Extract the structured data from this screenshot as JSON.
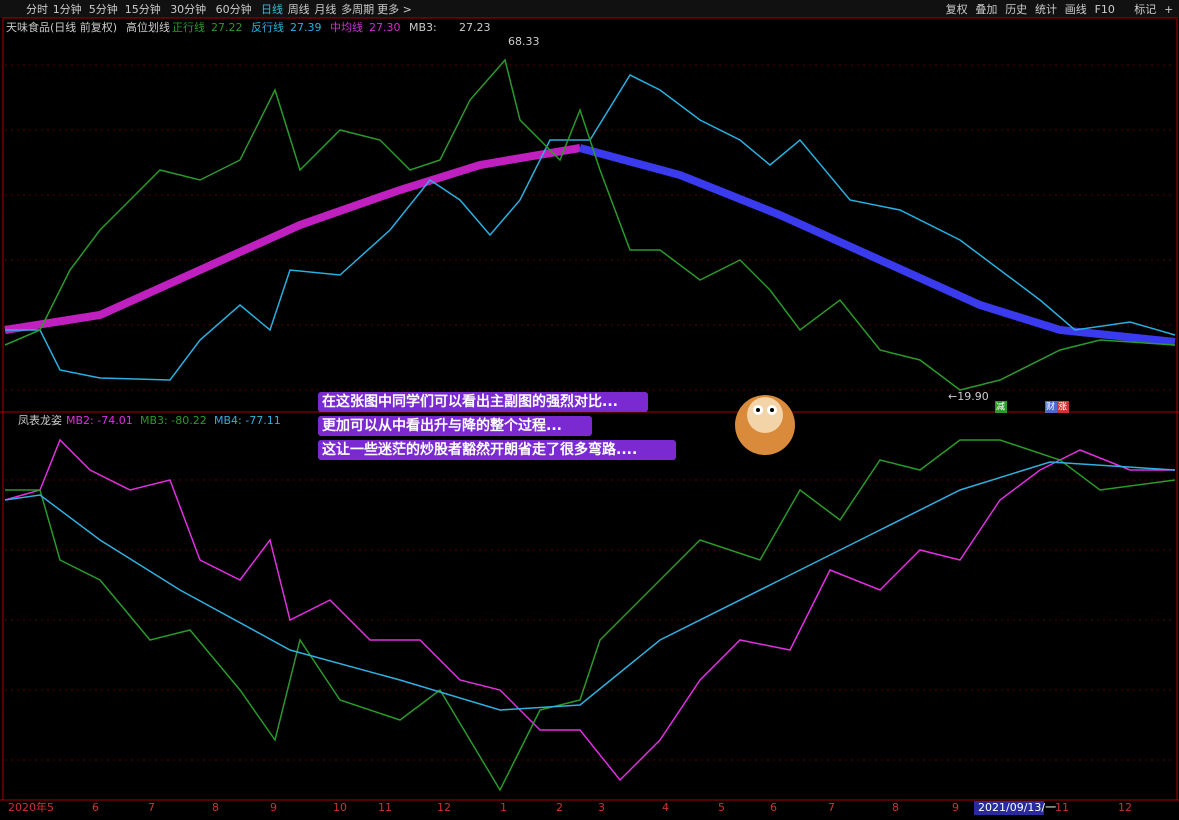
{
  "toolbar": {
    "left": [
      "分时",
      "1分钟",
      "5分钟",
      "15分钟",
      "30分钟",
      "60分钟",
      "日线",
      "周线",
      "月线",
      "多周期",
      "更多 >"
    ],
    "right": [
      "复权",
      "叠加",
      "历史",
      "统计",
      "画线",
      "F10",
      "标记",
      "+"
    ]
  },
  "main_panel": {
    "title": "天味食品(日线 前复权)",
    "indicator": "高位划线",
    "legend": [
      {
        "name": "正行线",
        "value": "27.22"
      },
      {
        "name": "反行线",
        "value": "27.39"
      },
      {
        "name": "中均线",
        "value": "27.30"
      },
      {
        "name": "MB3:",
        "value": "27.23"
      }
    ],
    "high_label": "68.33",
    "low_label": "←19.90",
    "markers": [
      "减",
      "财",
      "涨"
    ]
  },
  "sub_panel": {
    "title": "凤表龙姿",
    "legend": [
      "MB2: -74.01",
      "MB3: -80.22",
      "MB4: -77.11"
    ]
  },
  "overlay_text": [
    "在这张图中同学们可以看出主副图的强烈对比...",
    "更加可以从中看出升与降的整个过程...",
    "这让一些迷茫的炒股者豁然开朗省走了很多弯路...."
  ],
  "x_axis": [
    "2020年5",
    "6",
    "7",
    "8",
    "9",
    "10",
    "11",
    "12",
    "1",
    "2",
    "3",
    "4",
    "5",
    "6",
    "7",
    "8",
    "9",
    "2021/09/13/一",
    "11",
    "12"
  ]
}
